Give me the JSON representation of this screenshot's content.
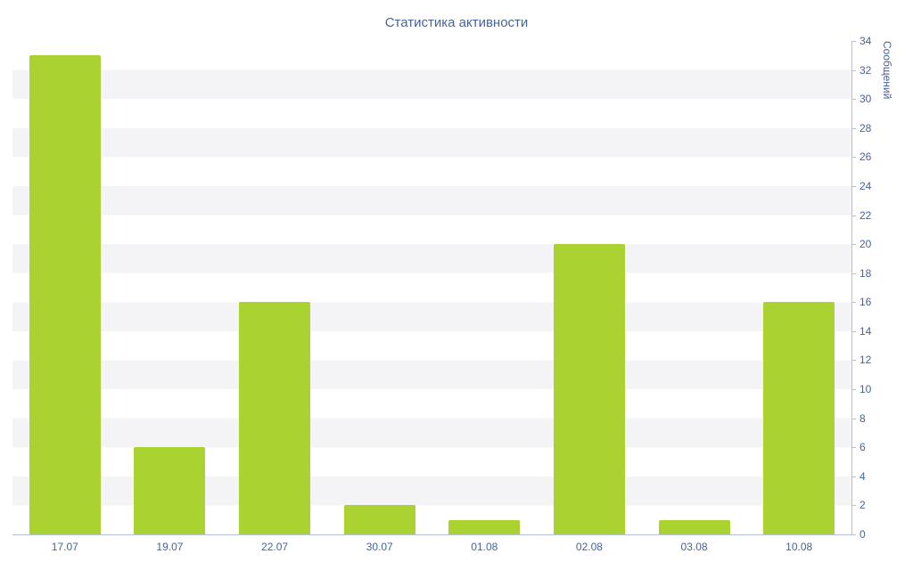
{
  "title": "Статистика активности",
  "colors": {
    "bar": "#aad331",
    "text": "#44649c",
    "axis": "#b2bfd6",
    "stripe": "#f4f4f6"
  },
  "chart_data": {
    "type": "bar",
    "categories": [
      "17.07",
      "19.07",
      "22.07",
      "30.07",
      "01.08",
      "02.08",
      "03.08",
      "10.08"
    ],
    "values": [
      33,
      6,
      16,
      2,
      1,
      20,
      1,
      16
    ],
    "title": "Статистика активности",
    "xlabel": "",
    "ylabel": "Сообщений",
    "ylim": [
      0,
      34
    ],
    "ytick_step": 2,
    "y_axis_side": "right",
    "grid": "horizontal-stripes",
    "legend": "none"
  }
}
